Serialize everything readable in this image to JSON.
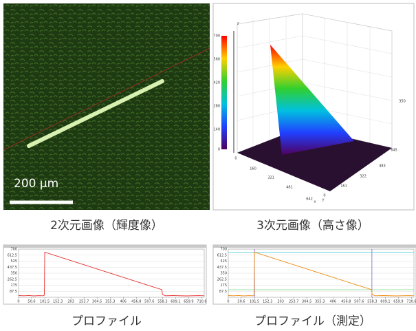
{
  "image_2d": {
    "caption": "2次元画像（輝度像）",
    "scale_bar": "200 μm"
  },
  "image_3d": {
    "caption": "3次元画像（高さ像）",
    "z_label": "z",
    "x_label": "x",
    "y_label": "y",
    "z_ticks": [
      700,
      560,
      420,
      280,
      140,
      0
    ],
    "x_ticks": [
      0,
      160,
      321,
      481,
      642
    ],
    "y_ticks": [
      645,
      483,
      322,
      161,
      0
    ],
    "side_tick": 350
  },
  "profiles": [
    {
      "caption": "プロファイル",
      "color": "#e83030",
      "xlim": [
        0,
        720
      ],
      "ylim": [
        0,
        700
      ],
      "xticks": [
        0,
        50.6,
        101.5,
        152.3,
        203,
        253.7,
        304.5,
        355.3,
        406,
        456.8,
        507.6,
        558.3,
        609.1,
        659.9,
        710.6
      ],
      "yticks": [
        700,
        612.5,
        525,
        437.5,
        350,
        262.5,
        175,
        87.5
      ],
      "x": [
        0,
        20,
        40,
        60,
        80,
        95,
        100,
        101.5,
        102,
        150,
        200,
        300,
        400,
        500,
        556,
        558,
        570,
        600,
        650,
        700,
        720
      ],
      "values": [
        25,
        22,
        26,
        20,
        24,
        22,
        30,
        660,
        655,
        597,
        537,
        417,
        297,
        177,
        110,
        40,
        22,
        25,
        20,
        24,
        22
      ]
    },
    {
      "caption": "プロファイル（測定）",
      "color": "#f08a10",
      "xlim": [
        0,
        720
      ],
      "ylim": [
        0,
        700
      ],
      "xticks": [
        0,
        50.6,
        101.5,
        152.3,
        203,
        253.7,
        304.5,
        355.3,
        406,
        456.8,
        507.6,
        558.3,
        609.1,
        659.9,
        710.6
      ],
      "yticks": [
        700,
        612.5,
        525,
        437.5,
        350,
        262.5,
        175,
        87.5
      ],
      "x": [
        0,
        20,
        40,
        60,
        80,
        95,
        100,
        101.5,
        102,
        150,
        200,
        300,
        400,
        500,
        556,
        558,
        570,
        600,
        650,
        700,
        720
      ],
      "values": [
        25,
        22,
        26,
        20,
        24,
        22,
        30,
        660,
        655,
        597,
        537,
        417,
        297,
        177,
        110,
        40,
        22,
        25,
        20,
        24,
        22
      ],
      "cursor_x": [
        101.5,
        557
      ],
      "cursor_y": [
        655,
        110
      ]
    }
  ]
}
